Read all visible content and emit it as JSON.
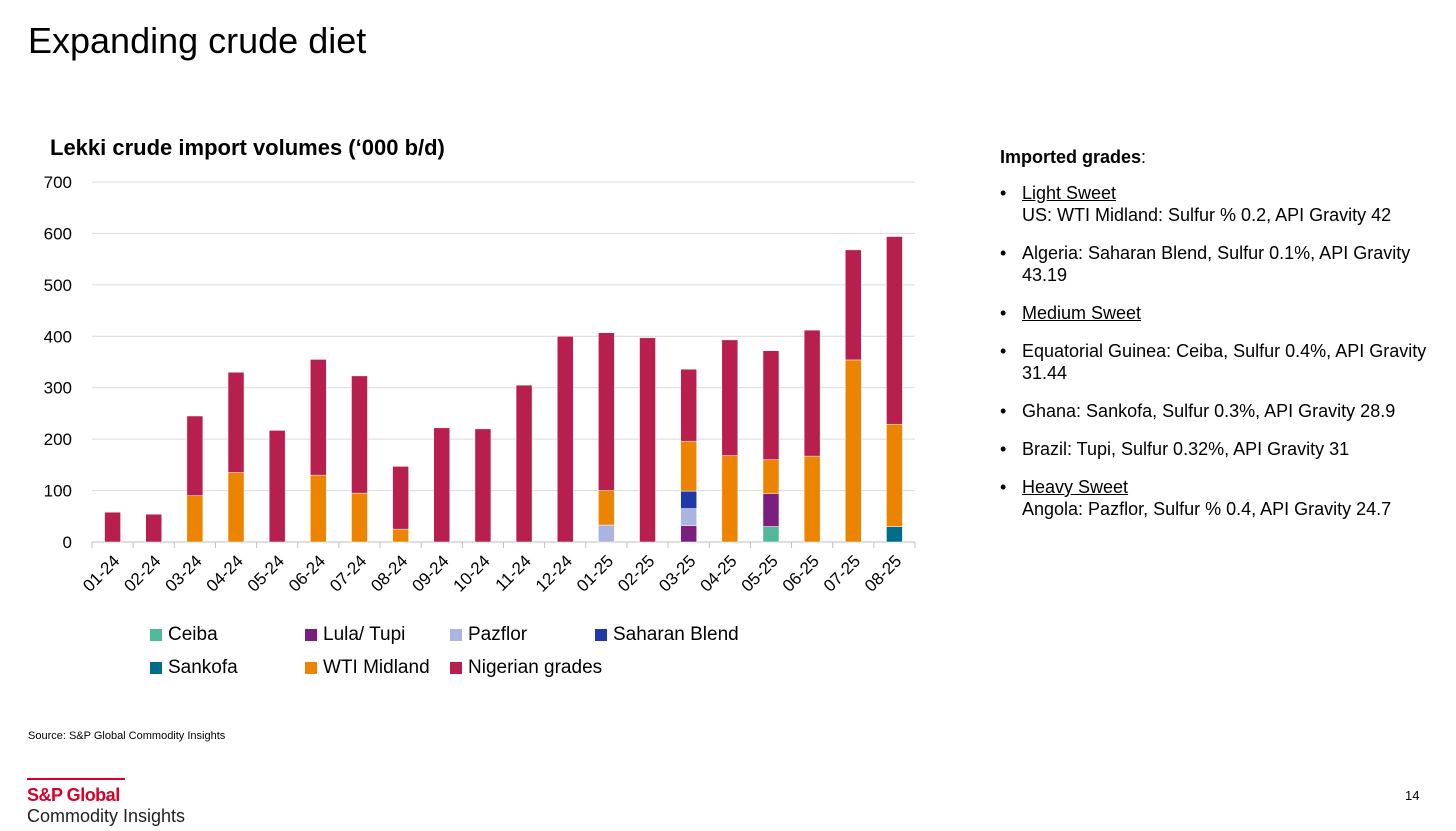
{
  "slide": {
    "title": "Expanding crude diet",
    "source": "Source: S&P Global Commodity Insights",
    "page_number": "14",
    "logo": {
      "line1": "S&P Global",
      "line2": "Commodity Insights"
    }
  },
  "sidebar": {
    "heading": "Imported grades",
    "heading_suffix": ":",
    "items": [
      {
        "head": "Light Sweet",
        "text": "US: WTI Midland: Sulfur % 0.2, API Gravity 42"
      },
      {
        "head": "",
        "text": "Algeria: Saharan Blend, Sulfur 0.1%, API Gravity 43.19"
      },
      {
        "head": "Medium Sweet",
        "text": ""
      },
      {
        "head": "",
        "text": "Equatorial Guinea: Ceiba, Sulfur 0.4%, API Gravity 31.44"
      },
      {
        "head": "",
        "text": "Ghana: Sankofa, Sulfur 0.3%, API Gravity 28.9"
      },
      {
        "head": "",
        "text": "Brazil: Tupi, Sulfur 0.32%, API Gravity 31"
      },
      {
        "head": "Heavy Sweet",
        "text": "Angola: Pazflor, Sulfur % 0.4, API Gravity 24.7"
      }
    ]
  },
  "chart_data": {
    "type": "bar",
    "stacked": true,
    "title": "Lekki crude import volumes (‘000 b/d)",
    "xlabel": "",
    "ylabel": "",
    "ylim": [
      0,
      700
    ],
    "yticks": [
      0,
      100,
      200,
      300,
      400,
      500,
      600,
      700
    ],
    "grid": true,
    "legend_position": "bottom",
    "categories": [
      "01-24",
      "02-24",
      "03-24",
      "04-24",
      "05-24",
      "06-24",
      "07-24",
      "08-24",
      "09-24",
      "10-24",
      "11-24",
      "12-24",
      "01-25",
      "02-25",
      "03-25",
      "04-25",
      "05-25",
      "06-25",
      "07-25",
      "08-25"
    ],
    "series": [
      {
        "name": "Ceiba",
        "color": "#4fb99a",
        "values": [
          0,
          0,
          0,
          0,
          0,
          0,
          0,
          0,
          0,
          0,
          0,
          0,
          0,
          0,
          0,
          0,
          30,
          0,
          0,
          0
        ]
      },
      {
        "name": "Lula/ Tupi",
        "color": "#7b1f7f",
        "values": [
          0,
          0,
          0,
          0,
          0,
          0,
          0,
          0,
          0,
          0,
          0,
          0,
          0,
          0,
          32,
          0,
          64,
          0,
          0,
          0
        ]
      },
      {
        "name": "Pazflor",
        "color": "#a9b4e0",
        "values": [
          0,
          0,
          0,
          0,
          0,
          0,
          0,
          0,
          0,
          0,
          0,
          0,
          33,
          0,
          33,
          0,
          0,
          0,
          0,
          0
        ]
      },
      {
        "name": "Saharan Blend",
        "color": "#1f3aa6",
        "values": [
          0,
          0,
          0,
          0,
          0,
          0,
          0,
          0,
          0,
          0,
          0,
          0,
          0,
          0,
          34,
          0,
          0,
          0,
          0,
          0
        ]
      },
      {
        "name": "Sankofa",
        "color": "#006e8a",
        "values": [
          0,
          0,
          0,
          0,
          0,
          0,
          0,
          0,
          0,
          0,
          0,
          0,
          0,
          0,
          0,
          0,
          0,
          0,
          0,
          30
        ]
      },
      {
        "name": "WTI Midland",
        "color": "#ec8400",
        "values": [
          0,
          0,
          90,
          135,
          0,
          130,
          95,
          25,
          0,
          0,
          0,
          0,
          67,
          0,
          97,
          168,
          66,
          167,
          354,
          199
        ]
      },
      {
        "name": "Nigerian grades",
        "color": "#b81f4e",
        "values": [
          58,
          54,
          155,
          195,
          217,
          225,
          228,
          122,
          222,
          220,
          305,
          400,
          307,
          397,
          140,
          225,
          212,
          245,
          214,
          365
        ]
      }
    ]
  }
}
